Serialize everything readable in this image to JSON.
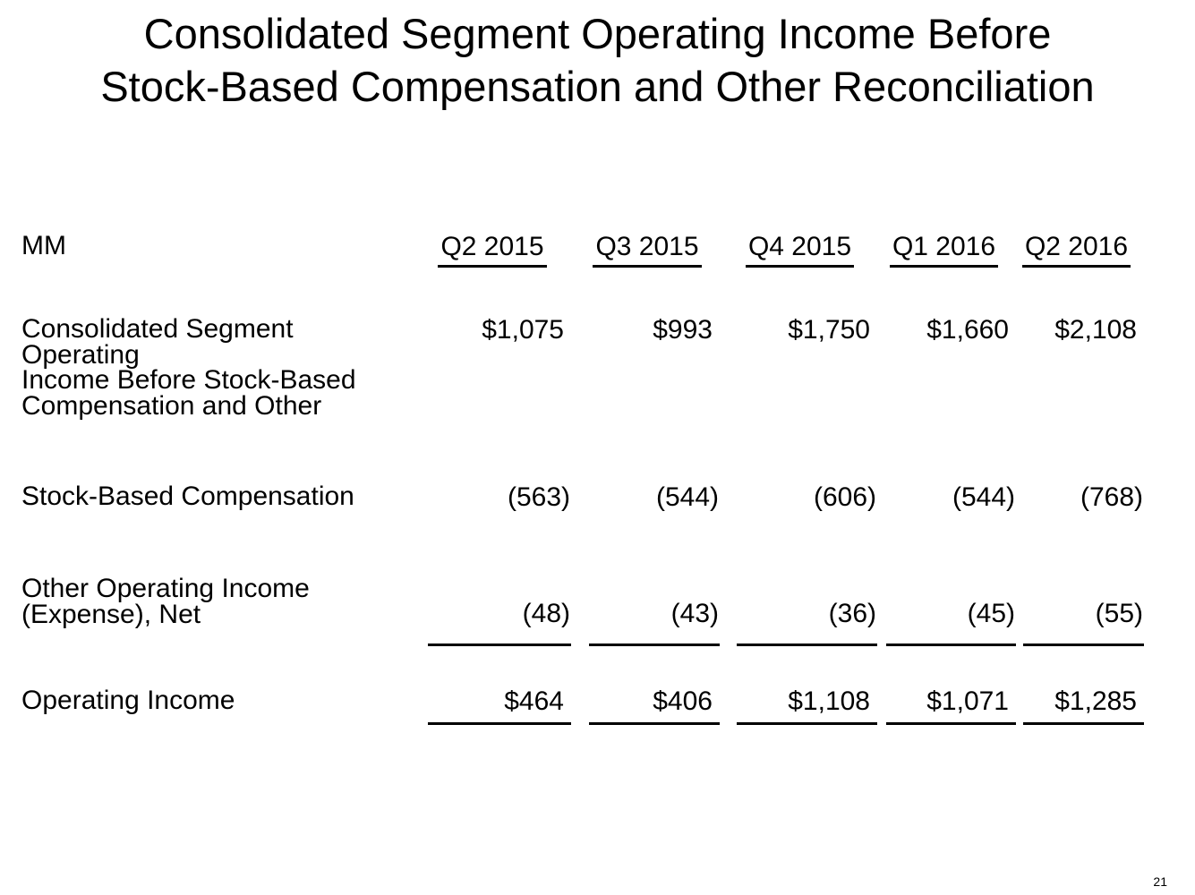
{
  "slide": {
    "title_line1": "Consolidated Segment Operating Income Before",
    "title_line2": "Stock-Based Compensation and Other Reconciliation",
    "page_number": "21",
    "background_color": "#ffffff",
    "text_color": "#000000"
  },
  "table": {
    "unit_label": "MM",
    "columns": [
      "Q2 2015",
      "Q3 2015",
      "Q4 2015",
      "Q1 2016",
      "Q2 2016"
    ],
    "rows": [
      {
        "label": "Consolidated Segment Operating Income Before Stock-Based Compensation and Other",
        "label_lines": [
          "Consolidated Segment Operating",
          "Income Before Stock-Based",
          "Compensation and Other"
        ],
        "values": [
          "$1,075",
          "$993",
          "$1,750",
          "$1,660",
          "$2,108"
        ]
      },
      {
        "label": "Stock-Based Compensation",
        "label_lines": [
          "Stock-Based Compensation"
        ],
        "values": [
          "(563)",
          "(544)",
          "(606)",
          "(544)",
          "(768)"
        ]
      },
      {
        "label": "Other Operating Income (Expense), Net",
        "label_lines": [
          "Other Operating Income",
          "(Expense), Net"
        ],
        "values": [
          "(48)",
          "(43)",
          "(36)",
          "(45)",
          "(55)"
        ]
      },
      {
        "label": "Operating Income",
        "label_lines": [
          "Operating Income"
        ],
        "values": [
          "$464",
          "$406",
          "$1,108",
          "$1,071",
          "$1,285"
        ]
      }
    ]
  }
}
